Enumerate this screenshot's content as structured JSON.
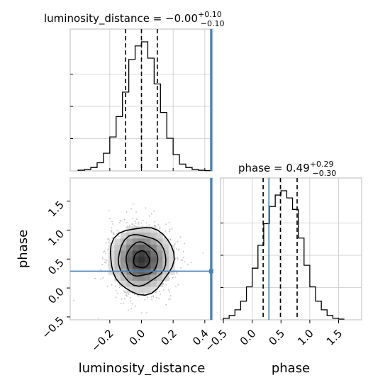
{
  "chart_data": [
    {
      "type": "histogram",
      "panel": "marginal-luminosity_distance",
      "title": {
        "text": "luminosity_distance = −0.00",
        "sup": "+0.10",
        "sub": "−0.10"
      },
      "xlim": [
        -0.45,
        0.45
      ],
      "bin_edges": [
        -0.4,
        -0.36,
        -0.32,
        -0.28,
        -0.24,
        -0.2,
        -0.16,
        -0.12,
        -0.08,
        -0.04,
        0.0,
        0.04,
        0.08,
        0.12,
        0.16,
        0.2,
        0.24,
        0.28,
        0.32,
        0.36,
        0.4,
        0.44
      ],
      "counts": [
        0.005,
        0.01,
        0.025,
        0.06,
        0.13,
        0.25,
        0.4,
        0.58,
        0.82,
        0.92,
        0.95,
        0.83,
        0.64,
        0.43,
        0.24,
        0.12,
        0.05,
        0.025,
        0.01,
        0.005,
        0.002
      ],
      "quantiles": [
        -0.1,
        0.0,
        0.1
      ],
      "truth": 0.44
    },
    {
      "type": "scatter-contour",
      "panel": "joint",
      "xlabel": "luminosity_distance",
      "ylabel": "phase",
      "xlim": [
        -0.45,
        0.45
      ],
      "ylim": [
        -0.55,
        1.9
      ],
      "x_ticks": [
        "−0.2",
        "0.0",
        "0.2",
        "0.4"
      ],
      "x_tick_values": [
        -0.2,
        0.0,
        0.2,
        0.4
      ],
      "y_ticks": [
        "−0.5",
        "0.0",
        "0.5",
        "1.0",
        "1.5"
      ],
      "y_tick_values": [
        -0.5,
        0.0,
        0.5,
        1.0,
        1.5
      ],
      "center": [
        0.0,
        0.49
      ],
      "sigma": [
        0.1,
        0.29
      ],
      "contour_levels_sigma": [
        0.5,
        1.0,
        1.5,
        2.0
      ],
      "truth": {
        "x": 0.44,
        "y": 0.29
      }
    },
    {
      "type": "histogram",
      "panel": "marginal-phase",
      "title": {
        "text": "phase = 0.49",
        "sup": "+0.29",
        "sub": "−0.30"
      },
      "xlabel": "phase",
      "xlim": [
        -0.55,
        1.9
      ],
      "x_ticks": [
        "−0.5",
        "0.0",
        "0.5",
        "1.0",
        "1.5"
      ],
      "x_tick_values": [
        -0.5,
        0.0,
        0.5,
        1.0,
        1.5
      ],
      "bin_edges": [
        -0.5,
        -0.4,
        -0.3,
        -0.2,
        -0.1,
        0.0,
        0.1,
        0.2,
        0.3,
        0.4,
        0.5,
        0.6,
        0.7,
        0.8,
        0.9,
        1.0,
        1.1,
        1.2,
        1.3,
        1.4,
        1.5,
        1.6
      ],
      "counts": [
        0.01,
        0.03,
        0.07,
        0.13,
        0.23,
        0.36,
        0.52,
        0.67,
        0.79,
        0.87,
        0.9,
        0.85,
        0.77,
        0.57,
        0.38,
        0.23,
        0.13,
        0.07,
        0.03,
        0.01,
        0.005
      ],
      "quantiles": [
        0.19,
        0.49,
        0.78
      ],
      "truth": 0.29
    }
  ],
  "colors": {
    "truth": "#4682b4",
    "hist": "#000000",
    "grid": "#c8c8c8"
  }
}
